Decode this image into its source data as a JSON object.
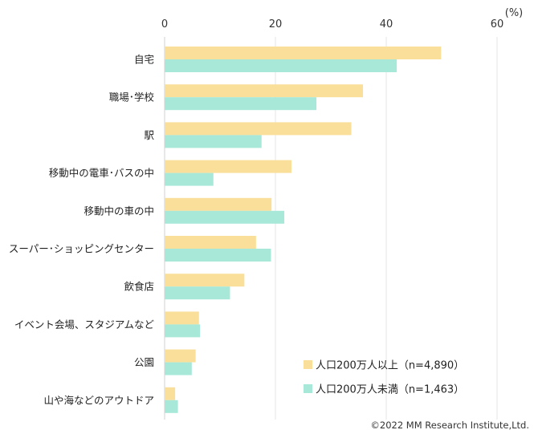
{
  "chart_data": {
    "type": "bar",
    "orientation": "horizontal",
    "unit_label": "(%)",
    "xlim": [
      0,
      60
    ],
    "xticks": [
      0,
      20,
      40,
      60
    ],
    "grid": true,
    "legend_position": "bottom-right",
    "categories": [
      "自宅",
      "職場･学校",
      "駅",
      "移動中の電車･バスの中",
      "移動中の車の中",
      "スーパー･ショッピングセンター",
      "飲食店",
      "イベント会場、スタジアムなど",
      "公園",
      "山や海などのアウトドア"
    ],
    "series": [
      {
        "name": "人口200万人以上（n=4,890）",
        "color": "#fadf9b",
        "values": [
          49.9,
          35.8,
          33.7,
          22.9,
          19.3,
          16.5,
          14.4,
          6.2,
          5.6,
          1.9
        ]
      },
      {
        "name": "人口200万人未満（n=1,463）",
        "color": "#a8e8d8",
        "values": [
          41.9,
          27.4,
          17.5,
          8.8,
          21.6,
          19.2,
          11.8,
          6.4,
          4.9,
          2.4
        ]
      }
    ]
  },
  "copyright": "©2022 MM Research Institute,Ltd."
}
